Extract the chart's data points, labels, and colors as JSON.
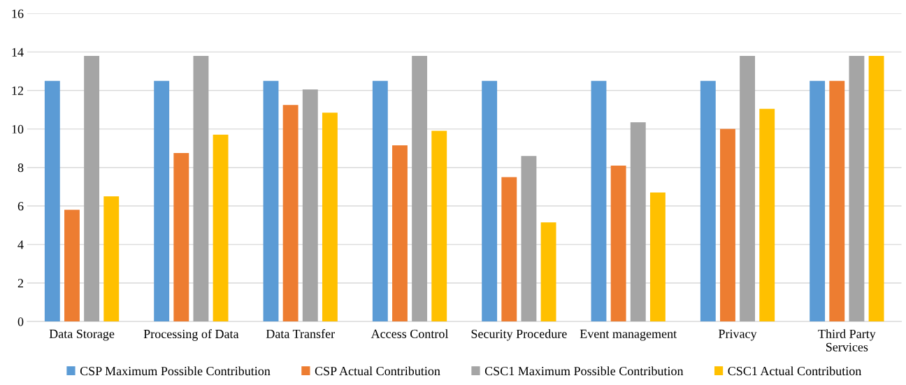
{
  "chart_data": {
    "type": "bar",
    "categories": [
      "Data Storage",
      "Processing of Data",
      "Data Transfer",
      "Access Control",
      "Security Procedure",
      "Event management",
      "Privacy",
      "Third Party\nServices"
    ],
    "series": [
      {
        "name": "CSP Maximum Possible Contribution",
        "color": "#5b9bd5",
        "values": [
          12.5,
          12.5,
          12.5,
          12.5,
          12.5,
          12.5,
          12.5,
          12.5
        ]
      },
      {
        "name": "CSP Actual Contribution",
        "color": "#ed7d31",
        "values": [
          5.8,
          8.75,
          11.25,
          9.15,
          7.5,
          8.1,
          10.0,
          12.5
        ]
      },
      {
        "name": "CSC1 Maximum Possible Contribution",
        "color": "#a5a5a5",
        "values": [
          13.8,
          13.8,
          12.05,
          13.8,
          8.6,
          10.35,
          13.8,
          13.8
        ]
      },
      {
        "name": "CSC1 Actual Contribution",
        "color": "#ffc000",
        "values": [
          6.5,
          9.7,
          10.85,
          9.9,
          5.15,
          6.7,
          11.05,
          13.8
        ]
      }
    ],
    "ylim": [
      0,
      16
    ],
    "yticks": [
      0,
      2,
      4,
      6,
      8,
      10,
      12,
      14,
      16
    ],
    "grid": "y",
    "legend": "bottom"
  }
}
